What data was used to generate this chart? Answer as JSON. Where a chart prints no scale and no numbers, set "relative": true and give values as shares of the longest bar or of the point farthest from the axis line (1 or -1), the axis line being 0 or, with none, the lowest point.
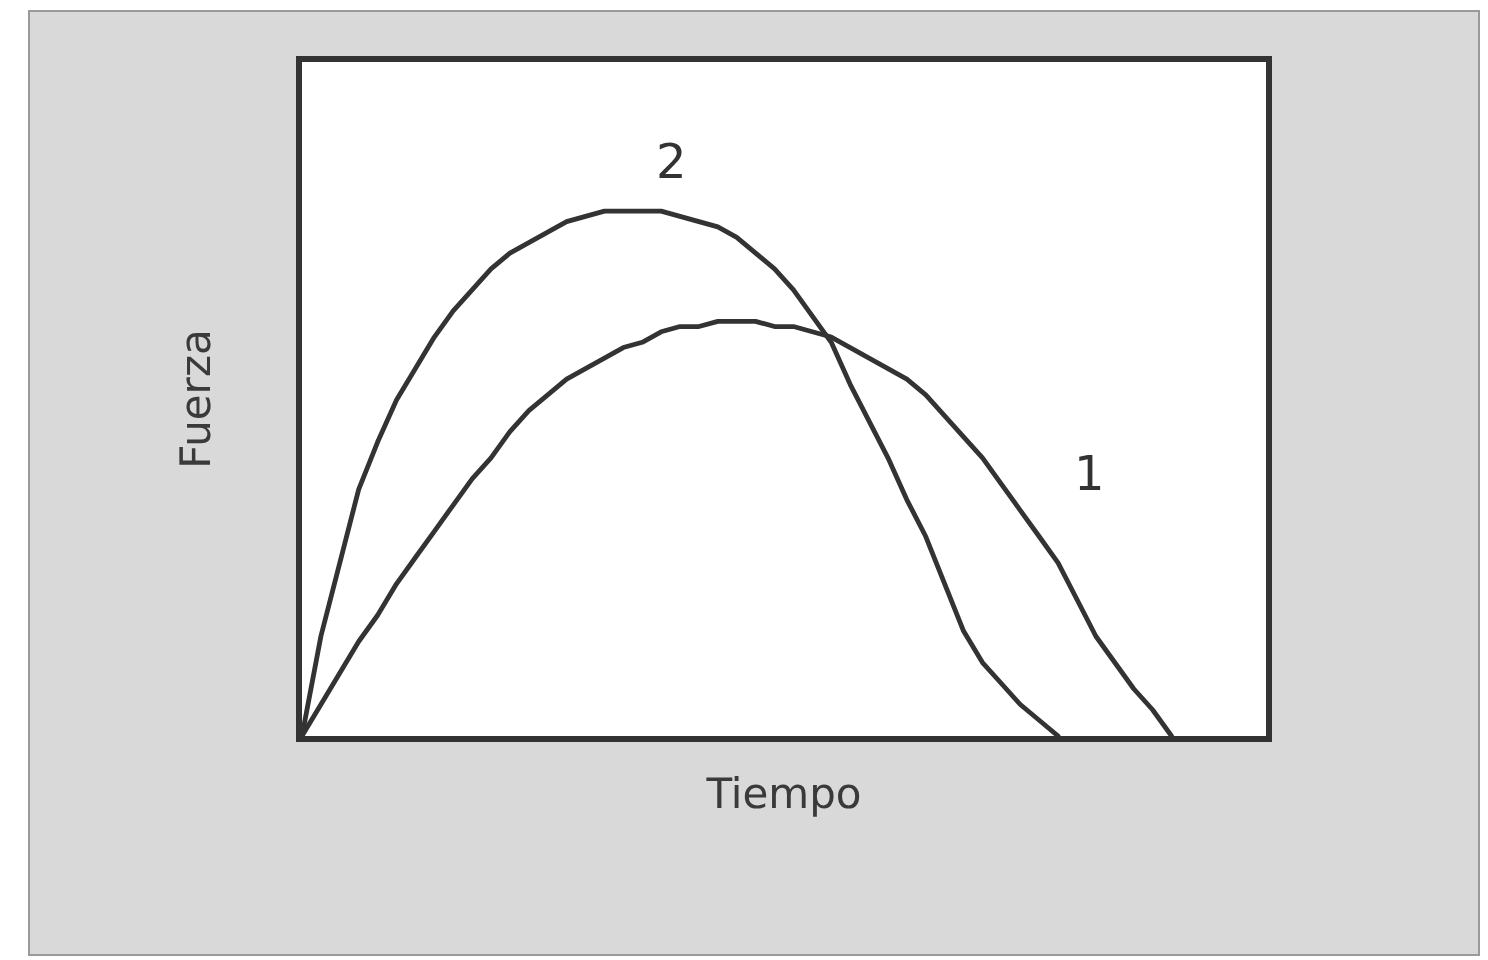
{
  "chart_data": {
    "type": "line",
    "xlabel": "Tiempo",
    "ylabel": "Fuerza",
    "relative": true,
    "categories": [
      null,
      null,
      null,
      null,
      null,
      null,
      null,
      null,
      null,
      null,
      null,
      null,
      null,
      null,
      null,
      null,
      null,
      null,
      null,
      null,
      null,
      null,
      null,
      null,
      null,
      null,
      null,
      null,
      null,
      null,
      null,
      null,
      null,
      null,
      null,
      null,
      null,
      null,
      null,
      null,
      null,
      null,
      null,
      null,
      null,
      null,
      null,
      null,
      null,
      null,
      null,
      null
    ],
    "series": [
      {
        "name": "1",
        "color": "#333333",
        "values": [
          0,
          0.06,
          0.12,
          0.18,
          0.23,
          0.29,
          0.34,
          0.39,
          0.44,
          0.49,
          0.53,
          0.58,
          0.62,
          0.65,
          0.68,
          0.7,
          0.72,
          0.74,
          0.75,
          0.77,
          0.78,
          0.78,
          0.79,
          0.79,
          0.79,
          0.78,
          0.78,
          0.77,
          0.76,
          0.74,
          0.72,
          0.7,
          0.68,
          0.65,
          0.61,
          0.57,
          0.53,
          0.48,
          0.43,
          0.38,
          0.33,
          0.26,
          0.19,
          0.14,
          0.09,
          0.05,
          0,
          null,
          null,
          null,
          null,
          null
        ]
      },
      {
        "name": "2",
        "color": "#333333",
        "values": [
          0,
          0.19,
          0.33,
          0.47,
          0.56,
          0.64,
          0.7,
          0.76,
          0.81,
          0.85,
          0.89,
          0.92,
          0.94,
          0.96,
          0.98,
          0.99,
          1,
          1,
          1,
          1,
          0.99,
          0.98,
          0.97,
          0.95,
          0.92,
          0.89,
          0.85,
          0.8,
          0.75,
          0.67,
          0.6,
          0.53,
          0.45,
          0.38,
          0.29,
          0.2,
          0.14,
          0.1,
          0.06,
          0.03,
          0,
          null,
          null,
          null,
          null,
          null,
          null,
          null,
          null,
          null,
          null,
          null
        ]
      }
    ]
  }
}
